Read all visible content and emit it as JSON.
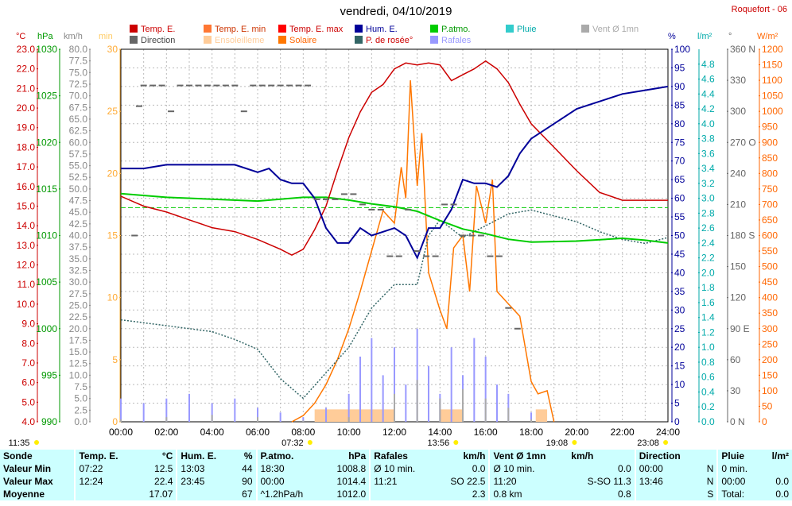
{
  "title": "vendredi, 04/10/2019",
  "station": "Roquefort - 06",
  "legend": [
    {
      "label": "Temp. E.",
      "color": "#cc0000",
      "text_color": "#cc0000"
    },
    {
      "label": "Temp. E. min",
      "color": "#ff7733",
      "text_color": "#cc3300"
    },
    {
      "label": "Temp. E. max",
      "color": "#ff0000",
      "text_color": "#cc0000"
    },
    {
      "label": "Hum. E.",
      "color": "#000099",
      "text_color": "#000099"
    },
    {
      "label": "P.atmo.",
      "color": "#00cc00",
      "text_color": "#009900"
    },
    {
      "label": "Pluie",
      "color": "#33cccc",
      "text_color": "#00aaaa"
    },
    {
      "label": "Vent Ø 1mn",
      "color": "#aaaaaa",
      "text_color": "#aaaaaa"
    },
    {
      "label": "Direction",
      "color": "#666666",
      "text_color": "#444444"
    },
    {
      "label": "Ensoleilleme",
      "color": "#ffcc99",
      "text_color": "#ffcc99"
    },
    {
      "label": "Solaire",
      "color": "#ff7700",
      "text_color": "#ff6600"
    },
    {
      "label": "P. de rosée°",
      "color": "#336666",
      "text_color": "#cc0000"
    },
    {
      "label": "Rafales",
      "color": "#9999ff",
      "text_color": "#9999ff"
    }
  ],
  "axis_units": {
    "temp": "°C",
    "press": "hPa",
    "wind": "km/h",
    "ensol": "min",
    "hum": "%",
    "rain": "l/m²",
    "dir": "°",
    "solar": "W/m²"
  },
  "chart_data": {
    "type": "line",
    "xlabel": "",
    "x_ticks": [
      "00:00",
      "02:00",
      "04:00",
      "06:00",
      "08:00",
      "10:00",
      "12:00",
      "14:00",
      "16:00",
      "18:00",
      "20:00",
      "22:00",
      "24:00"
    ],
    "xlim": [
      0,
      24
    ],
    "axes": {
      "temp": {
        "range": [
          4.0,
          23.0
        ],
        "ticks": [
          "23.0",
          "22.0",
          "21.0",
          "20.0",
          "19.0",
          "18.0",
          "17.0",
          "16.0",
          "15.0",
          "14.0",
          "13.0",
          "12.0",
          "11.0",
          "10.0",
          "9.0",
          "8.0",
          "7.0",
          "6.0",
          "5.0",
          "4.0"
        ]
      },
      "press": {
        "range": [
          990,
          1030
        ],
        "ticks": [
          "1030",
          "1025",
          "1020",
          "1015",
          "1010",
          "1005",
          "1000",
          "995",
          "990"
        ]
      },
      "wind": {
        "range": [
          0,
          80
        ],
        "ticks": [
          "80.0",
          "77.5",
          "75.0",
          "72.5",
          "70.0",
          "67.5",
          "65.0",
          "62.5",
          "60.0",
          "57.5",
          "55.0",
          "52.5",
          "50.0",
          "47.5",
          "45.0",
          "42.5",
          "40.0",
          "37.5",
          "35.0",
          "32.5",
          "30.0",
          "27.5",
          "25.0",
          "22.5",
          "20.0",
          "17.5",
          "15.0",
          "12.5",
          "10.0",
          "7.5",
          "5.0",
          "2.5",
          "0.0"
        ]
      },
      "ensol": {
        "range": [
          0,
          30
        ],
        "ticks": [
          "30",
          "25",
          "20",
          "15",
          "10",
          "5",
          "0"
        ]
      },
      "hum": {
        "range": [
          0,
          100
        ],
        "ticks": [
          "100",
          "95",
          "90",
          "85",
          "80",
          "75",
          "70",
          "65",
          "60",
          "55",
          "50",
          "45",
          "40",
          "35",
          "30",
          "25",
          "20",
          "15",
          "10",
          "5",
          "0"
        ]
      },
      "rain": {
        "range": [
          0,
          5
        ],
        "ticks": [
          "4.8",
          "4.6",
          "4.4",
          "4.2",
          "4.0",
          "3.8",
          "3.6",
          "3.4",
          "3.2",
          "3.0",
          "2.8",
          "2.6",
          "2.4",
          "2.2",
          "2.0",
          "1.8",
          "1.6",
          "1.4",
          "1.2",
          "1.0",
          "0.8",
          "0.6",
          "0.4",
          "0.2",
          "0.0"
        ]
      },
      "dir": {
        "range": [
          0,
          360
        ],
        "ticks": [
          "360 N",
          "330",
          "300",
          "270 O",
          "240",
          "210",
          "180 S",
          "150",
          "120",
          "90 E",
          "60",
          "30",
          "0 N"
        ]
      },
      "solar": {
        "range": [
          0,
          1200
        ],
        "ticks": [
          "1200",
          "1150",
          "1100",
          "1050",
          "1000",
          "950",
          "900",
          "850",
          "800",
          "750",
          "700",
          "650",
          "600",
          "550",
          "500",
          "450",
          "400",
          "350",
          "300",
          "250",
          "200",
          "150",
          "100",
          "50",
          "0"
        ]
      }
    },
    "series": [
      {
        "name": "Temp. E.",
        "axis": "temp",
        "color": "#cc0000",
        "x": [
          0,
          1,
          2,
          3,
          4,
          5,
          6,
          7,
          7.5,
          8,
          8.5,
          9,
          9.5,
          10,
          10.5,
          11,
          11.5,
          12,
          12.5,
          13,
          13.5,
          14,
          14.5,
          15,
          15.5,
          16,
          16.5,
          17,
          17.5,
          18,
          19,
          20,
          21,
          22,
          23,
          24
        ],
        "y": [
          15.5,
          15.0,
          14.7,
          14.3,
          13.9,
          13.7,
          13.3,
          12.8,
          12.5,
          12.8,
          13.8,
          15.0,
          16.8,
          18.5,
          19.8,
          20.8,
          21.2,
          22.0,
          22.3,
          22.2,
          22.3,
          22.2,
          21.4,
          21.7,
          22.0,
          22.4,
          22.0,
          21.3,
          20.2,
          19.2,
          18.0,
          16.8,
          15.7,
          15.3,
          15.3,
          15.3
        ]
      },
      {
        "name": "Hum. E.",
        "axis": "hum",
        "color": "#000099",
        "x": [
          0,
          1,
          2,
          3,
          4,
          5,
          6,
          6.5,
          7,
          7.5,
          8,
          8.5,
          9,
          9.5,
          10,
          10.5,
          11,
          11.5,
          12,
          12.5,
          13,
          13.5,
          14,
          14.5,
          15,
          15.5,
          16,
          16.5,
          17,
          17.5,
          18,
          19,
          20,
          21,
          22,
          23,
          24
        ],
        "y": [
          68,
          68,
          69,
          69,
          69,
          69,
          67,
          68,
          65,
          64,
          64,
          60,
          52,
          48,
          48,
          52,
          50,
          51,
          52,
          50,
          44,
          52,
          52,
          57,
          65,
          64,
          64,
          63,
          66,
          72,
          76,
          80,
          84,
          86,
          88,
          89,
          90
        ]
      },
      {
        "name": "P.atmo.",
        "axis": "press",
        "color": "#00cc00",
        "x": [
          0,
          2,
          4,
          6,
          8,
          9,
          10,
          11,
          12,
          13,
          14,
          15,
          16,
          17,
          18,
          20,
          22,
          23,
          24
        ],
        "y": [
          1014.5,
          1014.1,
          1013.9,
          1013.7,
          1014.1,
          1014.1,
          1013.8,
          1013.4,
          1013.1,
          1012.6,
          1011.6,
          1010.7,
          1010.2,
          1009.6,
          1009.3,
          1009.4,
          1009.7,
          1009.5,
          1009.2
        ]
      },
      {
        "name": "P. de rosée°",
        "axis": "temp",
        "color": "#336666",
        "x": [
          0,
          2,
          4,
          5,
          6,
          7,
          8,
          9,
          10,
          11,
          12,
          13,
          13.5,
          14,
          15,
          16,
          17,
          18,
          19,
          20,
          21,
          22,
          23,
          24
        ],
        "y": [
          9.2,
          8.9,
          8.6,
          8.2,
          7.7,
          6.2,
          5.2,
          6.5,
          7.8,
          9.8,
          11.0,
          11.0,
          13.5,
          14.3,
          13.4,
          14.0,
          14.6,
          14.8,
          14.5,
          14.2,
          13.7,
          13.3,
          13.1,
          13.4
        ]
      },
      {
        "name": "Solaire",
        "axis": "solar",
        "color": "#ff7700",
        "x": [
          7.5,
          8,
          8.5,
          9,
          9.5,
          10,
          10.5,
          11,
          11.5,
          12,
          12.3,
          12.5,
          12.7,
          13,
          13.2,
          13.5,
          14,
          14.3,
          14.6,
          15,
          15.3,
          15.6,
          16,
          16.3,
          16.5,
          17,
          17.5,
          18,
          18.3,
          18.7,
          19
        ],
        "y": [
          0,
          20,
          60,
          120,
          200,
          300,
          420,
          550,
          680,
          640,
          820,
          720,
          1100,
          760,
          930,
          480,
          360,
          300,
          560,
          600,
          420,
          760,
          640,
          780,
          420,
          380,
          340,
          130,
          90,
          100,
          0
        ]
      },
      {
        "name": "Vent Ø 1mn",
        "axis": "wind",
        "color": "#aaaaaa",
        "x": [
          0,
          2,
          4,
          6,
          8,
          10,
          12,
          13,
          14,
          15,
          16,
          17,
          18,
          19,
          20,
          24
        ],
        "y": [
          0.5,
          1.0,
          1.5,
          1.0,
          0.3,
          1.0,
          6.0,
          9.0,
          5.0,
          7.0,
          5.0,
          3.0,
          0.5,
          0,
          0,
          0
        ]
      },
      {
        "name": "Rafales",
        "axis": "wind",
        "color": "#9999ff",
        "x": [
          0,
          1,
          2,
          3,
          4,
          5,
          6,
          7,
          8,
          9,
          10,
          10.5,
          11,
          11.5,
          12,
          12.5,
          13,
          13.5,
          14,
          14.5,
          15,
          15.5,
          16,
          16.5,
          17,
          18,
          19,
          20,
          24
        ],
        "y": [
          5,
          4,
          5,
          6,
          4,
          5,
          3,
          2,
          1,
          3,
          6,
          14,
          18,
          10,
          16,
          8,
          20,
          12,
          6,
          16,
          10,
          18,
          14,
          8,
          6,
          2,
          0,
          0,
          0
        ]
      },
      {
        "name": "Ensoleilleme",
        "axis": "ensol",
        "color": "#ffcc99",
        "x": [
          8.5,
          12.0,
          14.0,
          15.0,
          18.2,
          18.7
        ],
        "y": [
          1,
          1,
          1,
          1,
          1,
          1
        ]
      }
    ],
    "reference": {
      "name": "P.atmo. 24h",
      "axis": "press",
      "value": 1013.0
    },
    "direction_points": {
      "axis": "dir",
      "x": [
        0.6,
        0.8,
        1.0,
        1.4,
        1.8,
        2.2,
        2.6,
        3.0,
        3.4,
        3.8,
        4.2,
        4.6,
        5.0,
        5.4,
        5.8,
        6.2,
        6.6,
        7.0,
        7.4,
        7.8,
        8.2,
        8.6,
        9.0,
        9.4,
        9.8,
        10.2,
        10.6,
        11.0,
        11.4,
        11.8,
        12.2,
        12.6,
        13.0,
        13.4,
        13.8,
        14.2,
        14.6,
        15.0,
        15.4,
        15.8,
        16.2,
        16.6,
        17.0,
        17.4
      ],
      "y": [
        180,
        305,
        325,
        325,
        325,
        300,
        325,
        325,
        325,
        325,
        325,
        325,
        325,
        300,
        325,
        325,
        325,
        325,
        325,
        325,
        325,
        215,
        215,
        215,
        220,
        220,
        210,
        205,
        205,
        160,
        160,
        205,
        165,
        160,
        160,
        210,
        210,
        180,
        180,
        180,
        160,
        160,
        110,
        90
      ]
    },
    "event_ticks": [
      {
        "label": "11:35",
        "time": 0.0
      },
      {
        "label": "07:32",
        "time": 7.53
      },
      {
        "label": "13:56",
        "time": 13.93
      },
      {
        "label": "19:08",
        "time": 19.13
      },
      {
        "label": "23:08",
        "time": 23.13
      }
    ]
  },
  "stats": {
    "headers": {
      "c0": "Sonde",
      "c1": "Temp. E.",
      "c1u": "°C",
      "c2": "Hum. E.",
      "c2u": "%",
      "c3": "P.atmo.",
      "c3u": "hPa",
      "c4": "Rafales",
      "c4u": "km/h",
      "c5": "Vent Ø 1mn",
      "c5u": "km/h",
      "c6": "Direction",
      "c7": "Pluie",
      "c7u": "l/m²"
    },
    "rows": [
      {
        "label": "Valeur Min",
        "t_time": "07:22",
        "t_val": "12.5",
        "h_time": "13:03",
        "h_val": "44",
        "p_time": "18:30",
        "p_val": "1008.8",
        "r_time": "Ø 10 min.",
        "r_val": "0.0",
        "v_time": "Ø 10 min.",
        "v_val": "0.0",
        "d_time": "00:00",
        "d_val": "N",
        "pl_time": "0 min.",
        "pl_val": ""
      },
      {
        "label": "Valeur Max",
        "t_time": "12:24",
        "t_val": "22.4",
        "h_time": "23:45",
        "h_val": "90",
        "p_time": "00:00",
        "p_val": "1014.4",
        "r_time": "11:21",
        "r_val": "SO 22.5",
        "v_time": "11:20",
        "v_val": "S-SO 11.3",
        "d_time": "13:46",
        "d_val": "N",
        "pl_time": "00:00",
        "pl_val": "0.0"
      },
      {
        "label": "Moyenne",
        "t_time": "",
        "t_val": "17.07",
        "h_time": "",
        "h_val": "67",
        "p_time": "^1.2hPa/h",
        "p_val": "1012.0",
        "r_time": "",
        "r_val": "2.3",
        "v_time": "0.8 km",
        "v_val": "0.8",
        "d_time": "",
        "d_val": "S",
        "pl_time": "Total:",
        "pl_val": "0.0"
      }
    ]
  }
}
